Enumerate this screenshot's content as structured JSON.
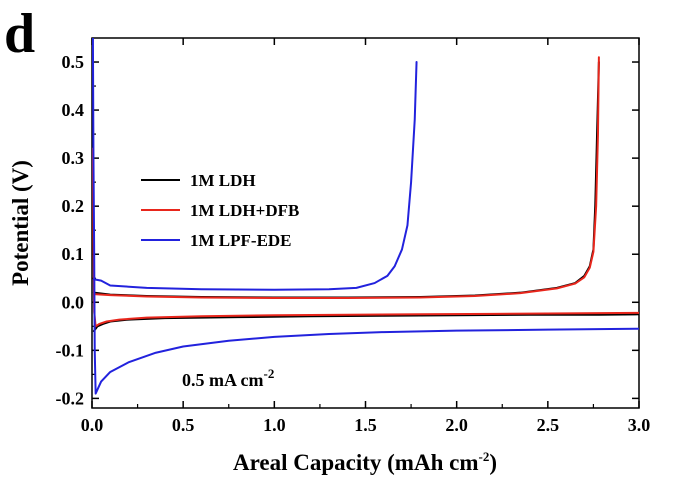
{
  "panel_label": "d",
  "chart_data": {
    "type": "line",
    "title": "",
    "xlabel": "Areal Capacity (mAh cm",
    "xlabel_sup": "-2",
    "xlabel_tail": ")",
    "ylabel": "Potential (V)",
    "xlim": [
      0,
      3.0
    ],
    "ylim": [
      -0.22,
      0.55
    ],
    "xticks": [
      "0.0",
      "0.5",
      "1.0",
      "1.5",
      "2.0",
      "2.5",
      "3.0"
    ],
    "yticks": [
      "-0.2",
      "-0.1",
      "0.0",
      "0.1",
      "0.2",
      "0.3",
      "0.4",
      "0.5"
    ],
    "grid": false,
    "legend_position": "upper-left",
    "annotation": "0.5 mA cm",
    "annotation_sup": "-2",
    "series": [
      {
        "name": "1M LDH",
        "color": "#000000",
        "segments": [
          [
            [
              0.01,
              -0.06
            ],
            [
              0.03,
              -0.05
            ],
            [
              0.06,
              -0.045
            ],
            [
              0.1,
              -0.04
            ],
            [
              0.2,
              -0.036
            ],
            [
              0.4,
              -0.033
            ],
            [
              0.8,
              -0.031
            ],
            [
              1.2,
              -0.029
            ],
            [
              1.6,
              -0.028
            ],
            [
              2.0,
              -0.027
            ],
            [
              2.4,
              -0.026
            ],
            [
              2.78,
              -0.026
            ],
            [
              3.0,
              -0.025
            ]
          ],
          [
            [
              0.01,
              0.02
            ],
            [
              0.1,
              0.016
            ],
            [
              0.3,
              0.013
            ],
            [
              0.6,
              0.011
            ],
            [
              1.0,
              0.01
            ],
            [
              1.4,
              0.01
            ],
            [
              1.8,
              0.011
            ],
            [
              2.1,
              0.014
            ],
            [
              2.35,
              0.02
            ],
            [
              2.55,
              0.03
            ],
            [
              2.65,
              0.04
            ],
            [
              2.7,
              0.055
            ],
            [
              2.73,
              0.075
            ],
            [
              2.75,
              0.11
            ],
            [
              2.76,
              0.2
            ],
            [
              2.77,
              0.35
            ],
            [
              2.78,
              0.5
            ]
          ]
        ]
      },
      {
        "name": "1M LDH+DFB",
        "color": "#e8261c",
        "segments": [
          [
            [
              0.005,
              0.32
            ],
            [
              0.008,
              0.12
            ],
            [
              0.012,
              -0.02
            ],
            [
              0.02,
              -0.05
            ],
            [
              0.04,
              -0.045
            ],
            [
              0.08,
              -0.04
            ],
            [
              0.15,
              -0.036
            ],
            [
              0.3,
              -0.032
            ],
            [
              0.6,
              -0.029
            ],
            [
              1.0,
              -0.027
            ],
            [
              1.4,
              -0.026
            ],
            [
              1.8,
              -0.025
            ],
            [
              2.2,
              -0.024
            ],
            [
              2.6,
              -0.023
            ],
            [
              3.0,
              -0.022
            ]
          ],
          [
            [
              0.01,
              0.017
            ],
            [
              0.1,
              0.015
            ],
            [
              0.3,
              0.012
            ],
            [
              0.6,
              0.01
            ],
            [
              1.0,
              0.009
            ],
            [
              1.4,
              0.009
            ],
            [
              1.8,
              0.01
            ],
            [
              2.1,
              0.013
            ],
            [
              2.35,
              0.019
            ],
            [
              2.55,
              0.029
            ],
            [
              2.65,
              0.039
            ],
            [
              2.7,
              0.052
            ],
            [
              2.73,
              0.072
            ],
            [
              2.75,
              0.105
            ],
            [
              2.765,
              0.2
            ],
            [
              2.775,
              0.35
            ],
            [
              2.78,
              0.51
            ]
          ]
        ]
      },
      {
        "name": "1M LPF-EDE",
        "color": "#2222dd",
        "segments": [
          [
            [
              0.005,
              0.55
            ],
            [
              0.008,
              0.3
            ],
            [
              0.012,
              0.1
            ],
            [
              0.015,
              -0.1
            ],
            [
              0.02,
              -0.19
            ],
            [
              0.05,
              -0.165
            ],
            [
              0.1,
              -0.145
            ],
            [
              0.2,
              -0.125
            ],
            [
              0.35,
              -0.105
            ],
            [
              0.5,
              -0.092
            ],
            [
              0.75,
              -0.08
            ],
            [
              1.0,
              -0.072
            ],
            [
              1.3,
              -0.066
            ],
            [
              1.6,
              -0.062
            ],
            [
              2.0,
              -0.059
            ],
            [
              2.5,
              -0.057
            ],
            [
              3.0,
              -0.055
            ]
          ],
          [
            [
              0.01,
              0.048
            ],
            [
              0.05,
              0.045
            ],
            [
              0.1,
              0.035
            ],
            [
              0.3,
              0.03
            ],
            [
              0.6,
              0.027
            ],
            [
              1.0,
              0.026
            ],
            [
              1.3,
              0.027
            ],
            [
              1.45,
              0.03
            ],
            [
              1.55,
              0.04
            ],
            [
              1.62,
              0.055
            ],
            [
              1.66,
              0.075
            ],
            [
              1.7,
              0.11
            ],
            [
              1.73,
              0.16
            ],
            [
              1.75,
              0.25
            ],
            [
              1.77,
              0.38
            ],
            [
              1.78,
              0.5
            ]
          ]
        ]
      }
    ]
  }
}
